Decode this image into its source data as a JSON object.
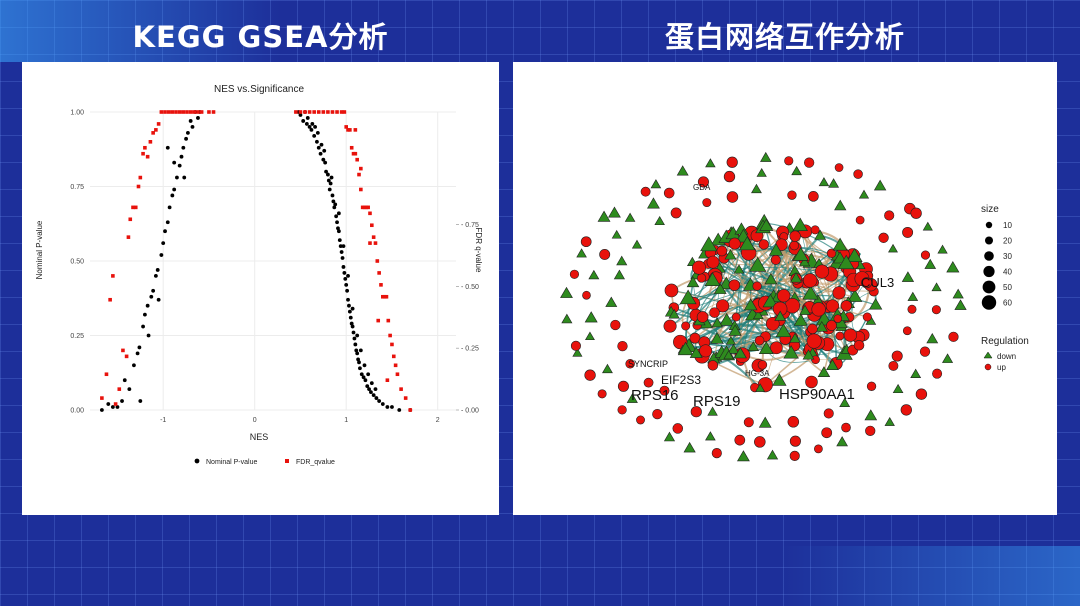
{
  "titles": {
    "left": "KEGG GSEA分析",
    "right": "蛋白网络互作分析"
  },
  "chart_data": [
    {
      "type": "scatter",
      "title": "NES vs.Significance",
      "xlabel": "NES",
      "ylabel": "Nominal P-value",
      "y2label": "FDR q-value",
      "xlim": [
        -1.8,
        2.2
      ],
      "ylim": [
        0,
        1.0
      ],
      "y2lim": [
        0,
        1.0
      ],
      "xticks": [
        -1,
        0,
        1,
        2
      ],
      "yticks": [
        "0.00",
        "0.25",
        "0.50",
        "0.75",
        "1.00"
      ],
      "y2ticks": [
        "0.00",
        "0.25",
        "0.50",
        "0.75"
      ],
      "grid": true,
      "legend_position": "bottom",
      "series": [
        {
          "name": "Nominal P-value",
          "color": "#000000",
          "shape": "circle",
          "points": [
            [
              -1.67,
              0.0
            ],
            [
              -1.6,
              0.02
            ],
            [
              -1.55,
              0.01
            ],
            [
              -1.5,
              0.01
            ],
            [
              -1.45,
              0.03
            ],
            [
              -1.42,
              0.1
            ],
            [
              -1.37,
              0.07
            ],
            [
              -1.32,
              0.15
            ],
            [
              -1.28,
              0.19
            ],
            [
              -1.26,
              0.21
            ],
            [
              -1.25,
              0.03
            ],
            [
              -1.22,
              0.28
            ],
            [
              -1.2,
              0.32
            ],
            [
              -1.17,
              0.35
            ],
            [
              -1.16,
              0.25
            ],
            [
              -1.13,
              0.38
            ],
            [
              -1.11,
              0.4
            ],
            [
              -1.08,
              0.45
            ],
            [
              -1.06,
              0.47
            ],
            [
              -1.05,
              0.37
            ],
            [
              -1.02,
              0.52
            ],
            [
              -1.0,
              0.56
            ],
            [
              -0.98,
              0.6
            ],
            [
              -0.95,
              0.63
            ],
            [
              -0.93,
              0.68
            ],
            [
              -0.9,
              0.72
            ],
            [
              -0.88,
              0.74
            ],
            [
              -0.85,
              0.78
            ],
            [
              -0.82,
              0.82
            ],
            [
              -0.8,
              0.85
            ],
            [
              -0.78,
              0.88
            ],
            [
              -0.75,
              0.91
            ],
            [
              -0.73,
              0.93
            ],
            [
              -0.7,
              0.97
            ],
            [
              -0.68,
              0.95
            ],
            [
              -0.65,
              1.0
            ],
            [
              -0.62,
              0.98
            ],
            [
              -0.6,
              1.0
            ],
            [
              -0.77,
              0.78
            ],
            [
              -0.95,
              0.88
            ],
            [
              -0.88,
              0.83
            ],
            [
              0.48,
              1.0
            ],
            [
              0.5,
              0.99
            ],
            [
              0.53,
              0.97
            ],
            [
              0.55,
              1.0
            ],
            [
              0.57,
              0.96
            ],
            [
              0.58,
              0.98
            ],
            [
              0.6,
              0.95
            ],
            [
              0.62,
              0.94
            ],
            [
              0.63,
              0.96
            ],
            [
              0.65,
              0.92
            ],
            [
              0.66,
              0.95
            ],
            [
              0.68,
              0.9
            ],
            [
              0.69,
              0.93
            ],
            [
              0.7,
              0.88
            ],
            [
              0.72,
              0.86
            ],
            [
              0.73,
              0.89
            ],
            [
              0.75,
              0.84
            ],
            [
              0.76,
              0.87
            ],
            [
              0.77,
              0.83
            ],
            [
              0.78,
              0.8
            ],
            [
              0.8,
              0.79
            ],
            [
              0.81,
              0.77
            ],
            [
              0.82,
              0.74
            ],
            [
              0.83,
              0.76
            ],
            [
              0.85,
              0.72
            ],
            [
              0.86,
              0.7
            ],
            [
              0.87,
              0.68
            ],
            [
              0.88,
              0.69
            ],
            [
              0.89,
              0.65
            ],
            [
              0.9,
              0.63
            ],
            [
              0.91,
              0.61
            ],
            [
              0.92,
              0.6
            ],
            [
              0.93,
              0.57
            ],
            [
              0.94,
              0.55
            ],
            [
              0.95,
              0.53
            ],
            [
              0.96,
              0.51
            ],
            [
              0.97,
              0.48
            ],
            [
              0.98,
              0.46
            ],
            [
              0.99,
              0.44
            ],
            [
              1.0,
              0.42
            ],
            [
              1.01,
              0.4
            ],
            [
              1.02,
              0.37
            ],
            [
              1.03,
              0.35
            ],
            [
              1.04,
              0.33
            ],
            [
              1.05,
              0.31
            ],
            [
              1.06,
              0.29
            ],
            [
              1.07,
              0.28
            ],
            [
              1.08,
              0.26
            ],
            [
              1.09,
              0.24
            ],
            [
              1.1,
              0.22
            ],
            [
              1.11,
              0.2
            ],
            [
              1.12,
              0.19
            ],
            [
              1.13,
              0.17
            ],
            [
              1.14,
              0.16
            ],
            [
              1.15,
              0.14
            ],
            [
              1.17,
              0.12
            ],
            [
              1.19,
              0.11
            ],
            [
              1.21,
              0.1
            ],
            [
              1.23,
              0.08
            ],
            [
              1.25,
              0.07
            ],
            [
              1.27,
              0.06
            ],
            [
              1.3,
              0.05
            ],
            [
              1.33,
              0.04
            ],
            [
              1.36,
              0.03
            ],
            [
              1.4,
              0.02
            ],
            [
              1.45,
              0.01
            ],
            [
              1.5,
              0.01
            ],
            [
              1.58,
              0.0
            ],
            [
              1.7,
              0.0
            ],
            [
              0.84,
              0.78
            ],
            [
              0.92,
              0.66
            ],
            [
              0.97,
              0.55
            ],
            [
              1.02,
              0.45
            ],
            [
              1.07,
              0.34
            ],
            [
              1.12,
              0.25
            ],
            [
              1.16,
              0.2
            ],
            [
              1.2,
              0.15
            ],
            [
              1.24,
              0.12
            ],
            [
              1.28,
              0.09
            ],
            [
              1.32,
              0.07
            ]
          ]
        },
        {
          "name": "FDR_qvalue",
          "color": "#e8120c",
          "shape": "square",
          "points": [
            [
              -1.67,
              0.04
            ],
            [
              -1.62,
              0.12
            ],
            [
              -1.58,
              0.37
            ],
            [
              -1.55,
              0.45
            ],
            [
              -1.52,
              0.02
            ],
            [
              -1.48,
              0.07
            ],
            [
              -1.44,
              0.2
            ],
            [
              -1.4,
              0.18
            ],
            [
              -1.38,
              0.58
            ],
            [
              -1.36,
              0.64
            ],
            [
              -1.33,
              0.68
            ],
            [
              -1.3,
              0.68
            ],
            [
              -1.27,
              0.75
            ],
            [
              -1.25,
              0.78
            ],
            [
              -1.22,
              0.86
            ],
            [
              -1.2,
              0.88
            ],
            [
              -1.17,
              0.85
            ],
            [
              -1.14,
              0.9
            ],
            [
              -1.11,
              0.93
            ],
            [
              -1.08,
              0.94
            ],
            [
              -1.05,
              0.96
            ],
            [
              -1.02,
              1.0
            ],
            [
              -0.98,
              1.0
            ],
            [
              -0.94,
              1.0
            ],
            [
              -0.9,
              1.0
            ],
            [
              -0.86,
              1.0
            ],
            [
              -0.82,
              1.0
            ],
            [
              -0.78,
              1.0
            ],
            [
              -0.74,
              1.0
            ],
            [
              -0.7,
              1.0
            ],
            [
              -0.66,
              1.0
            ],
            [
              -0.62,
              1.0
            ],
            [
              -0.58,
              1.0
            ],
            [
              -0.5,
              1.0
            ],
            [
              -0.45,
              1.0
            ],
            [
              0.45,
              1.0
            ],
            [
              0.5,
              1.0
            ],
            [
              0.55,
              1.0
            ],
            [
              0.6,
              1.0
            ],
            [
              0.65,
              1.0
            ],
            [
              0.7,
              1.0
            ],
            [
              0.75,
              1.0
            ],
            [
              0.8,
              1.0
            ],
            [
              0.85,
              1.0
            ],
            [
              0.9,
              1.0
            ],
            [
              0.95,
              1.0
            ],
            [
              0.98,
              1.0
            ],
            [
              1.0,
              0.95
            ],
            [
              1.02,
              0.94
            ],
            [
              1.04,
              0.94
            ],
            [
              1.06,
              0.88
            ],
            [
              1.08,
              0.86
            ],
            [
              1.1,
              0.86
            ],
            [
              1.12,
              0.84
            ],
            [
              1.14,
              0.79
            ],
            [
              1.16,
              0.81
            ],
            [
              1.18,
              0.68
            ],
            [
              1.2,
              0.68
            ],
            [
              1.22,
              0.68
            ],
            [
              1.24,
              0.68
            ],
            [
              1.26,
              0.66
            ],
            [
              1.28,
              0.62
            ],
            [
              1.3,
              0.58
            ],
            [
              1.32,
              0.56
            ],
            [
              1.34,
              0.5
            ],
            [
              1.36,
              0.46
            ],
            [
              1.38,
              0.42
            ],
            [
              1.4,
              0.38
            ],
            [
              1.42,
              0.38
            ],
            [
              1.44,
              0.38
            ],
            [
              1.46,
              0.3
            ],
            [
              1.48,
              0.25
            ],
            [
              1.5,
              0.22
            ],
            [
              1.52,
              0.18
            ],
            [
              1.54,
              0.15
            ],
            [
              1.56,
              0.12
            ],
            [
              1.6,
              0.07
            ],
            [
              1.65,
              0.04
            ],
            [
              1.7,
              0.0
            ],
            [
              1.1,
              0.94
            ],
            [
              1.16,
              0.74
            ],
            [
              1.26,
              0.56
            ],
            [
              1.35,
              0.3
            ],
            [
              1.45,
              0.1
            ]
          ]
        }
      ]
    },
    {
      "type": "network",
      "node_labels": [
        "GDA",
        "CUL3",
        "SYNCRIP",
        "EIF2S3",
        "RPS16",
        "RPS19",
        "HSP90AA1",
        "HG-3A"
      ],
      "legend": {
        "size": {
          "title": "size",
          "values": [
            "10",
            "20",
            "30",
            "40",
            "50",
            "60"
          ]
        },
        "regulation": {
          "title": "Regulation",
          "items": [
            {
              "label": "down",
              "color": "#2e8b1e",
              "shape": "triangle"
            },
            {
              "label": "up",
              "color": "#e8120c",
              "shape": "circle"
            }
          ]
        }
      }
    }
  ]
}
